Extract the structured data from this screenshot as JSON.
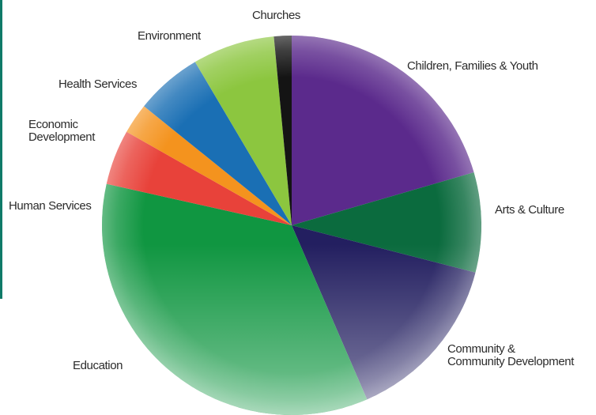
{
  "colors": {
    "accent_bar": "#0f7a68",
    "label_text": "#2b2b2b"
  },
  "chart_data": {
    "type": "pie",
    "title": "",
    "start": "12 o'clock",
    "direction": "clockwise",
    "slices": [
      {
        "label": "Children, Families & Youth",
        "label_lines": [
          "Children, Families & Youth"
        ],
        "value": 20.5,
        "color": "#5b2a8c"
      },
      {
        "label": "Arts & Culture",
        "label_lines": [
          "Arts & Culture"
        ],
        "value": 8.5,
        "color": "#0b6b3e"
      },
      {
        "label": "Community & Community Development",
        "label_lines": [
          "Community  &",
          "Community Development"
        ],
        "value": 14.5,
        "color": "#231f60"
      },
      {
        "label": "Education",
        "label_lines": [
          "Education"
        ],
        "value": 35.0,
        "color": "#109641"
      },
      {
        "label": "Human Services",
        "label_lines": [
          "Human Services"
        ],
        "value": 4.7,
        "color": "#e8423a"
      },
      {
        "label": "Economic Development",
        "label_lines": [
          "Economic",
          "Development"
        ],
        "value": 2.6,
        "color": "#f4931e"
      },
      {
        "label": "Health Services",
        "label_lines": [
          "Health Services"
        ],
        "value": 5.7,
        "color": "#1a6fb4"
      },
      {
        "label": "Environment",
        "label_lines": [
          "Environment"
        ],
        "value": 7.0,
        "color": "#8cc63f"
      },
      {
        "label": "Churches",
        "label_lines": [
          "Churches"
        ],
        "value": 1.5,
        "color": "#141414"
      }
    ]
  }
}
